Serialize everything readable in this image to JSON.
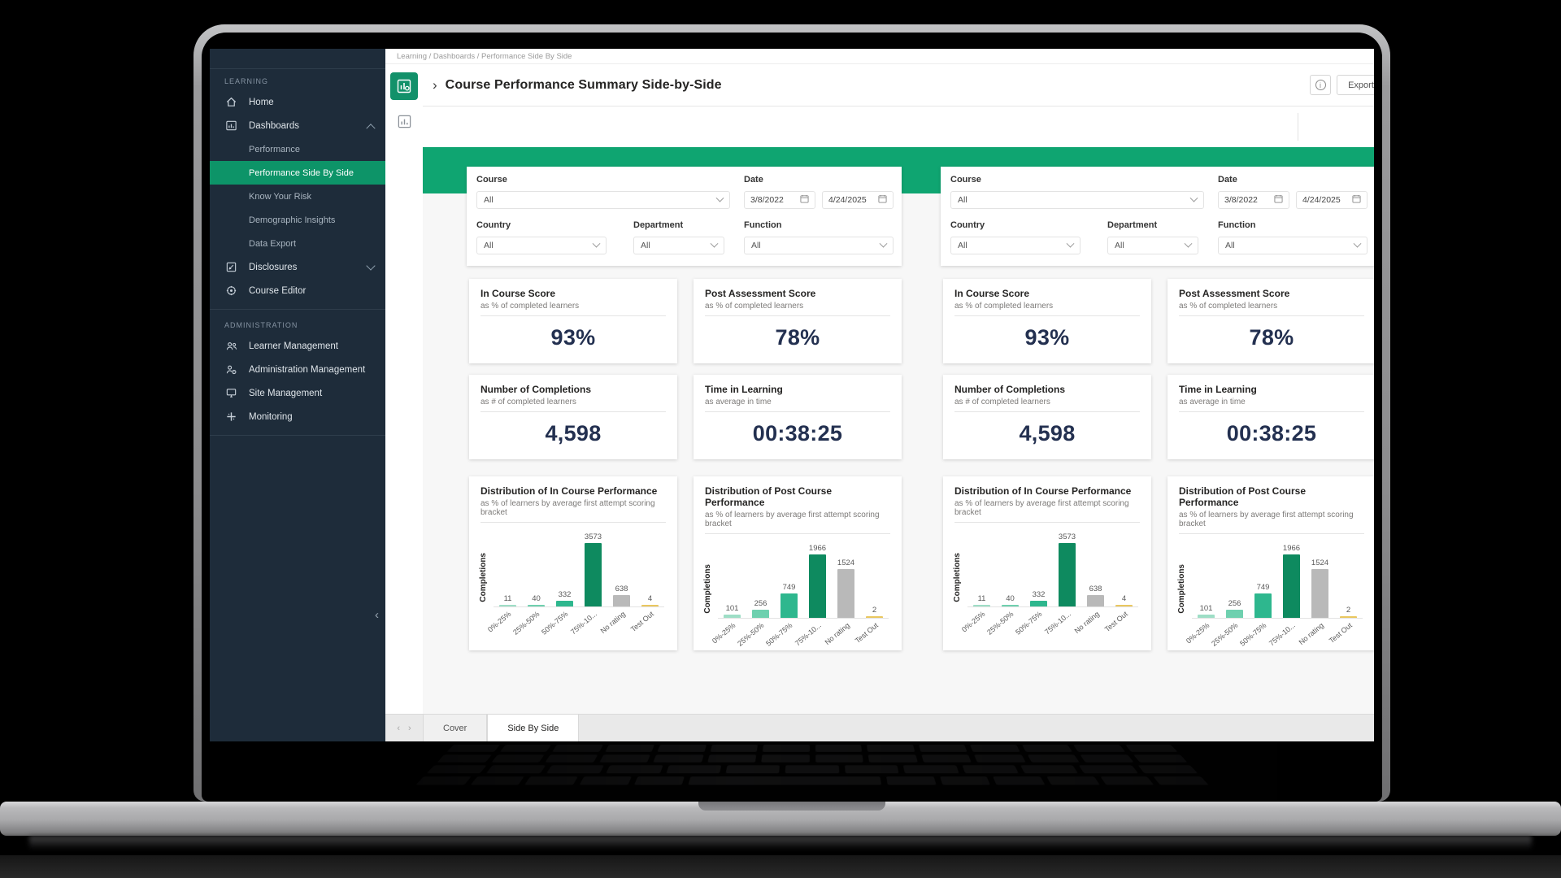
{
  "header": {
    "breadcrumb": "Learning / Dashboards / Performance Side By Side",
    "title_chevron": "›",
    "title": "Course Performance Summary Side-by-Side",
    "info_label": "i",
    "export_label": "Export"
  },
  "sidebar": {
    "sections": [
      {
        "label": "LEARNING",
        "items": [
          {
            "label": "Home",
            "icon": "home-icon"
          },
          {
            "label": "Dashboards",
            "icon": "dashboards-icon",
            "chevron": "up"
          },
          {
            "label": "Performance",
            "sub": true
          },
          {
            "label": "Performance Side By Side",
            "sub": true,
            "active": true
          },
          {
            "label": "Know Your Risk",
            "sub": true
          },
          {
            "label": "Demographic Insights",
            "sub": true
          },
          {
            "label": "Data Export",
            "sub": true
          },
          {
            "label": "Disclosures",
            "icon": "disclosures-icon",
            "chevron": "down"
          },
          {
            "label": "Course Editor",
            "icon": "course-editor-icon"
          }
        ]
      },
      {
        "label": "ADMINISTRATION",
        "items": [
          {
            "label": "Learner Management",
            "icon": "learner-management-icon"
          },
          {
            "label": "Administration Management",
            "icon": "administration-management-icon"
          },
          {
            "label": "Site Management",
            "icon": "site-management-icon"
          },
          {
            "label": "Monitoring",
            "icon": "monitoring-icon"
          }
        ]
      }
    ],
    "collapse_glyph": "‹"
  },
  "panels": [
    {
      "filters": {
        "course_label": "Course",
        "course_value": "All",
        "date_label": "Date",
        "date_from": "3/8/2022",
        "date_to": "4/24/2025",
        "country_label": "Country",
        "country_value": "All",
        "department_label": "Department",
        "department_value": "All",
        "function_label": "Function",
        "function_value": "All"
      },
      "kpis": [
        {
          "title": "In Course Score",
          "subtitle": "as % of completed learners",
          "value": "93%"
        },
        {
          "title": "Post Assessment Score",
          "subtitle": "as % of completed learners",
          "value": "78%"
        },
        {
          "title": "Number of Completions",
          "subtitle": "as # of completed learners",
          "value": "4,598"
        },
        {
          "title": "Time in Learning",
          "subtitle": "as average in time",
          "value": "00:38:25"
        }
      ],
      "chart_refs": [
        0,
        1
      ]
    },
    {
      "filters": {
        "course_label": "Course",
        "course_value": "All",
        "date_label": "Date",
        "date_from": "3/8/2022",
        "date_to": "4/24/2025",
        "country_label": "Country",
        "country_value": "All",
        "department_label": "Department",
        "department_value": "All",
        "function_label": "Function",
        "function_value": "All"
      },
      "kpis": [
        {
          "title": "In Course Score",
          "subtitle": "as % of completed learners",
          "value": "93%"
        },
        {
          "title": "Post Assessment Score",
          "subtitle": "as % of completed learners",
          "value": "78%"
        },
        {
          "title": "Number of Completions",
          "subtitle": "as # of completed learners",
          "value": "4,598"
        },
        {
          "title": "Time in Learning",
          "subtitle": "as average in time",
          "value": "00:38:25"
        }
      ],
      "chart_refs": [
        2,
        3
      ]
    }
  ],
  "chart_data": [
    {
      "type": "bar",
      "title": "Distribution of In Course Performance",
      "subtitle": "as % of learners by average first attempt scoring bracket",
      "ylabel": "Completions",
      "categories": [
        "0%-25%",
        "25%-50%",
        "50%-75%",
        "75%-10...",
        "No rating",
        "Test Out"
      ],
      "values": [
        11,
        40,
        332,
        3573,
        638,
        4
      ],
      "bar_colors": [
        "#9edec6",
        "#6fd0af",
        "#2eb78e",
        "#0e8a5f",
        "#b9b9b9",
        "#e9c75f"
      ],
      "legend": "off",
      "grid": "off"
    },
    {
      "type": "bar",
      "title": "Distribution of Post Course Performance",
      "subtitle": "as % of learners by average first attempt scoring bracket",
      "ylabel": "Completions",
      "categories": [
        "0%-25%",
        "25%-50%",
        "50%-75%",
        "75%-10...",
        "No rating",
        "Test Out"
      ],
      "values": [
        101,
        256,
        749,
        1966,
        1524,
        2
      ],
      "bar_colors": [
        "#9edec6",
        "#6fd0af",
        "#2eb78e",
        "#0e8a5f",
        "#b9b9b9",
        "#e9c75f"
      ],
      "legend": "off",
      "grid": "off"
    },
    {
      "type": "bar",
      "title": "Distribution of In Course Performance",
      "subtitle": "as % of learners by average first attempt scoring bracket",
      "ylabel": "Completions",
      "categories": [
        "0%-25%",
        "25%-50%",
        "50%-75%",
        "75%-10...",
        "No rating",
        "Test Out"
      ],
      "values": [
        11,
        40,
        332,
        3573,
        638,
        4
      ],
      "bar_colors": [
        "#9edec6",
        "#6fd0af",
        "#2eb78e",
        "#0e8a5f",
        "#b9b9b9",
        "#e9c75f"
      ],
      "legend": "off",
      "grid": "off"
    },
    {
      "type": "bar",
      "title": "Distribution of Post Course Performance",
      "subtitle": "as % of learners by average first attempt scoring bracket",
      "ylabel": "Completions",
      "categories": [
        "0%-25%",
        "25%-50%",
        "50%-75%",
        "75%-10...",
        "No rating",
        "Test Out"
      ],
      "values": [
        101,
        256,
        749,
        1966,
        1524,
        2
      ],
      "bar_colors": [
        "#9edec6",
        "#6fd0af",
        "#2eb78e",
        "#0e8a5f",
        "#b9b9b9",
        "#e9c75f"
      ],
      "legend": "off",
      "grid": "off"
    }
  ],
  "tabs": {
    "prev_glyph": "‹",
    "next_glyph": "›",
    "items": [
      {
        "label": "Cover",
        "active": false
      },
      {
        "label": "Side By Side",
        "active": true
      }
    ]
  },
  "colors": {
    "accent_green": "#0fa571",
    "sidebar_active_green": "#0d9468",
    "report_icon_green": "#12916a",
    "kpi_number_navy": "#233050"
  }
}
